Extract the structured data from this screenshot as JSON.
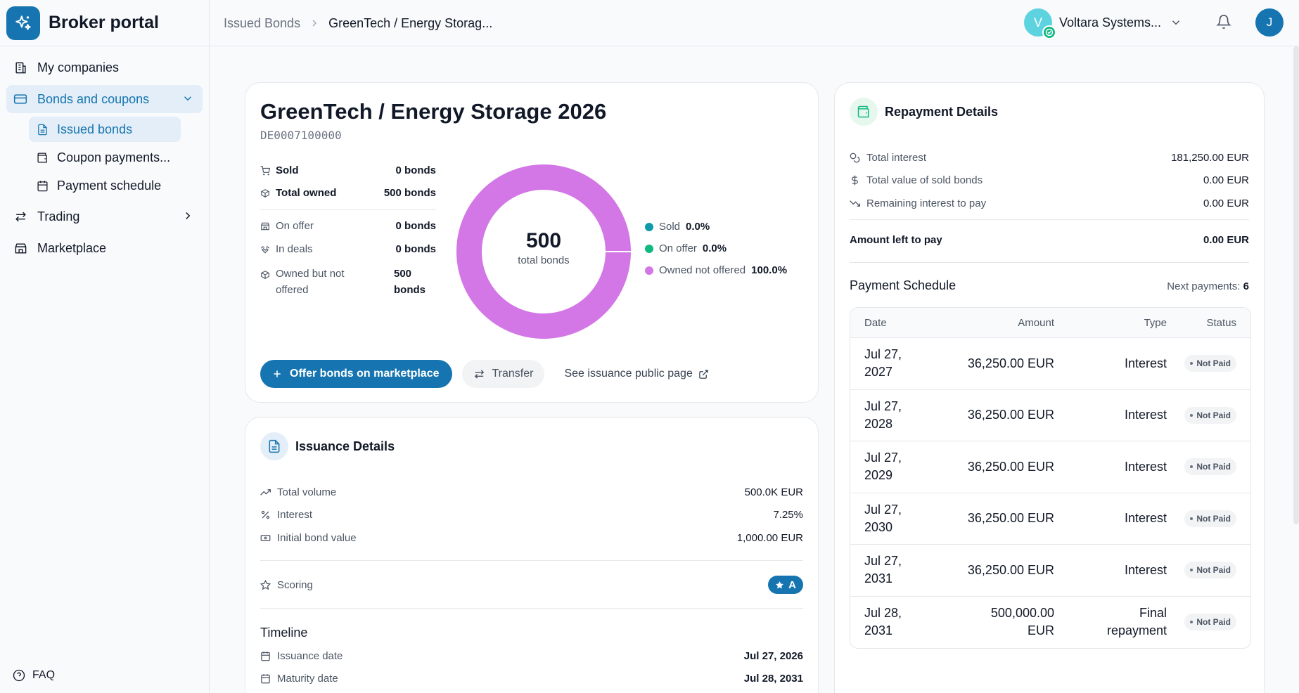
{
  "app": {
    "name": "Broker portal"
  },
  "sidebar": {
    "items": [
      {
        "label": "My companies"
      },
      {
        "label": "Bonds and coupons"
      },
      {
        "label": "Trading"
      },
      {
        "label": "Marketplace"
      }
    ],
    "subitems": [
      {
        "label": "Issued bonds"
      },
      {
        "label": "Coupon payments..."
      },
      {
        "label": "Payment schedule"
      }
    ],
    "faq": "FAQ"
  },
  "header": {
    "breadcrumb": [
      "Issued Bonds",
      "GreenTech / Energy Storag..."
    ],
    "company": {
      "initial": "V",
      "name": "Voltara Systems..."
    },
    "user_initial": "J"
  },
  "bond": {
    "title": "GreenTech / Energy Storage 2026",
    "isin": "DE0007100000",
    "stats": [
      {
        "label": "Sold",
        "value": "0 bonds"
      },
      {
        "label": "Total owned",
        "value": "500 bonds"
      },
      {
        "label": "On offer",
        "value": "0 bonds"
      },
      {
        "label": "In deals",
        "value": "0 bonds"
      },
      {
        "label": "Owned but not offered",
        "value": "500 bonds"
      }
    ],
    "donut": {
      "total": "500",
      "label": "total bonds",
      "segments": [
        {
          "name": "Sold",
          "value": "0.0%",
          "fraction": 0.0,
          "color": "#0e9aa7"
        },
        {
          "name": "On offer",
          "value": "0.0%",
          "fraction": 0.0,
          "color": "#10b981"
        },
        {
          "name": "Owned not offered",
          "value": "100.0%",
          "fraction": 1.0,
          "color": "#d376e6"
        }
      ]
    },
    "actions": {
      "offer": "Offer bonds on marketplace",
      "transfer": "Transfer",
      "public_page": "See issuance public page"
    }
  },
  "issuance": {
    "title": "Issuance Details",
    "rows": [
      {
        "label": "Total volume",
        "value": "500.0K EUR"
      },
      {
        "label": "Interest",
        "value": "7.25%"
      },
      {
        "label": "Initial bond value",
        "value": "1,000.00 EUR"
      }
    ],
    "scoring": {
      "label": "Scoring",
      "value": "A"
    },
    "timeline": {
      "title": "Timeline",
      "rows": [
        {
          "label": "Issuance date",
          "value": "Jul 27, 2026"
        },
        {
          "label": "Maturity date",
          "value": "Jul 28, 2031"
        }
      ]
    }
  },
  "repayment": {
    "title": "Repayment Details",
    "rows": [
      {
        "label": "Total interest",
        "value": "181,250.00 EUR"
      },
      {
        "label": "Total value of sold bonds",
        "value": "0.00 EUR"
      },
      {
        "label": "Remaining interest to pay",
        "value": "0.00 EUR"
      }
    ],
    "left_to_pay": {
      "label": "Amount left to pay",
      "value": "0.00 EUR"
    },
    "schedule": {
      "title": "Payment Schedule",
      "next_label": "Next payments:",
      "next_count": "6",
      "columns": [
        "Date",
        "Amount",
        "Type",
        "Status"
      ],
      "rows": [
        {
          "date_1": "Jul 27,",
          "date_2": "2027",
          "amount_1": "36,250.00 EUR",
          "amount_2": "",
          "type_1": "Interest",
          "type_2": "",
          "status": "Not Paid"
        },
        {
          "date_1": "Jul 27,",
          "date_2": "2028",
          "amount_1": "36,250.00 EUR",
          "amount_2": "",
          "type_1": "Interest",
          "type_2": "",
          "status": "Not Paid"
        },
        {
          "date_1": "Jul 27,",
          "date_2": "2029",
          "amount_1": "36,250.00 EUR",
          "amount_2": "",
          "type_1": "Interest",
          "type_2": "",
          "status": "Not Paid"
        },
        {
          "date_1": "Jul 27,",
          "date_2": "2030",
          "amount_1": "36,250.00 EUR",
          "amount_2": "",
          "type_1": "Interest",
          "type_2": "",
          "status": "Not Paid"
        },
        {
          "date_1": "Jul 27,",
          "date_2": "2031",
          "amount_1": "36,250.00 EUR",
          "amount_2": "",
          "type_1": "Interest",
          "type_2": "",
          "status": "Not Paid"
        },
        {
          "date_1": "Jul 28,",
          "date_2": "2031",
          "amount_1": "500,000.00",
          "amount_2": "EUR",
          "type_1": "Final",
          "type_2": "repayment",
          "status": "Not Paid"
        }
      ]
    }
  },
  "colors": {
    "accent": "#1675b0",
    "accent_soft": "#e3eef8",
    "success": "#10b981"
  }
}
